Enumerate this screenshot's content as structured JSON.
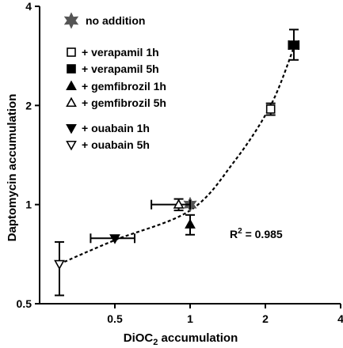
{
  "chart_data": {
    "type": "scatter",
    "xlabel_main": "DiOC",
    "xlabel_sub": "2",
    "xlabel_rest": " accumulation",
    "ylabel": "Daptomycin accumulation",
    "x_scale": "log2",
    "y_scale": "log2",
    "xlim": [
      0.25,
      4
    ],
    "ylim": [
      0.5,
      4
    ],
    "x_ticks": [
      {
        "value": 0.5,
        "label": "0.5"
      },
      {
        "value": 1,
        "label": "1"
      },
      {
        "value": 2,
        "label": "2"
      },
      {
        "value": 4,
        "label": "4"
      }
    ],
    "y_ticks": [
      {
        "value": 0.5,
        "label": "0.5"
      },
      {
        "value": 1,
        "label": "1"
      },
      {
        "value": 2,
        "label": "2"
      },
      {
        "value": 4,
        "label": "4"
      }
    ],
    "grid": false,
    "legend_position": "top-left",
    "series": [
      {
        "name": "no addition",
        "marker": "star",
        "fill": "#555555",
        "x": 1.0,
        "y": 1.0,
        "xerr": [
          1.0,
          1.0
        ],
        "yerr": [
          1.0,
          1.0
        ]
      },
      {
        "name": "+ verapamil 1h",
        "marker": "square",
        "fill": "#ffffff",
        "x": 2.1,
        "y": 1.95,
        "xerr": [
          2.1,
          2.1
        ],
        "yerr": [
          1.87,
          2.03
        ]
      },
      {
        "name": "+ verapamil 5h",
        "marker": "square",
        "fill": "#000000",
        "x": 2.6,
        "y": 3.05,
        "xerr": [
          2.48,
          2.72
        ],
        "yerr": [
          2.75,
          3.4
        ]
      },
      {
        "name": "+ gemfibrozil 1h",
        "marker": "triangle-up",
        "fill": "#000000",
        "x": 1.0,
        "y": 0.87,
        "xerr": [
          1.0,
          1.0
        ],
        "yerr": [
          0.81,
          0.93
        ]
      },
      {
        "name": "+ gemfibrozil 5h",
        "marker": "triangle-up",
        "fill": "#ffffff",
        "x": 0.9,
        "y": 1.0,
        "xerr": [
          0.7,
          1.0
        ],
        "yerr": [
          0.96,
          1.04
        ]
      },
      {
        "name": "+ ouabain 1h",
        "marker": "triangle-down",
        "fill": "#000000",
        "x": 0.5,
        "y": 0.79,
        "xerr": [
          0.4,
          0.6
        ],
        "yerr": [
          0.79,
          0.79
        ]
      },
      {
        "name": "+ ouabain 5h",
        "marker": "triangle-down",
        "fill": "#ffffff",
        "x": 0.3,
        "y": 0.66,
        "xerr": [
          0.3,
          0.3
        ],
        "yerr": [
          0.53,
          0.77
        ]
      }
    ],
    "fit_curve": {
      "style": "dashed",
      "points": [
        [
          0.3,
          0.66
        ],
        [
          0.5,
          0.78
        ],
        [
          1.0,
          0.96
        ],
        [
          1.5,
          1.35
        ],
        [
          2.1,
          2.0
        ],
        [
          2.6,
          3.0
        ]
      ]
    },
    "annotation_r2": {
      "prefix": "R",
      "superscript": "2",
      "text": " = 0.985"
    }
  }
}
